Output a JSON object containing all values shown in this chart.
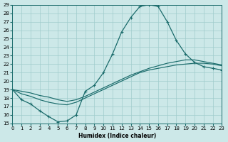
{
  "xlabel": "Humidex (Indice chaleur)",
  "bg_color": "#cce8e8",
  "grid_color": "#a0cccc",
  "line_color": "#1a6b6b",
  "xlim": [
    0,
    23
  ],
  "ylim": [
    15,
    29
  ],
  "xticks": [
    0,
    1,
    2,
    3,
    4,
    5,
    6,
    7,
    8,
    9,
    10,
    11,
    12,
    13,
    14,
    15,
    16,
    17,
    18,
    19,
    20,
    21,
    22,
    23
  ],
  "yticks": [
    15,
    16,
    17,
    18,
    19,
    20,
    21,
    22,
    23,
    24,
    25,
    26,
    27,
    28,
    29
  ],
  "main_x": [
    0,
    1,
    2,
    3,
    4,
    5,
    6,
    7,
    8,
    9,
    10,
    11,
    12,
    13,
    14,
    15,
    16,
    17,
    18,
    19,
    20,
    21,
    22,
    23
  ],
  "main_y": [
    19.0,
    17.8,
    17.3,
    16.5,
    15.8,
    15.2,
    15.3,
    16.0,
    18.8,
    19.5,
    21.0,
    23.2,
    25.8,
    27.5,
    28.8,
    29.0,
    28.8,
    27.0,
    24.8,
    23.2,
    22.2,
    21.7,
    21.5,
    21.3
  ],
  "line1_x": [
    0,
    1,
    2,
    3,
    4,
    5,
    6,
    7,
    8,
    9,
    10,
    11,
    12,
    13,
    14,
    15,
    16,
    17,
    18,
    19,
    20,
    21,
    22,
    23
  ],
  "line1_y": [
    19.0,
    18.5,
    18.2,
    17.8,
    17.5,
    17.3,
    17.2,
    17.5,
    18.0,
    18.5,
    19.0,
    19.5,
    20.0,
    20.5,
    21.0,
    21.3,
    21.5,
    21.7,
    21.9,
    22.0,
    22.1,
    22.1,
    22.0,
    21.8
  ],
  "line2_x": [
    0,
    1,
    2,
    3,
    4,
    5,
    6,
    7,
    8,
    9,
    10,
    11,
    12,
    13,
    14,
    15,
    16,
    17,
    18,
    19,
    20,
    21,
    22,
    23
  ],
  "line2_y": [
    19.0,
    18.8,
    18.6,
    18.3,
    18.1,
    17.8,
    17.6,
    17.8,
    18.2,
    18.7,
    19.2,
    19.7,
    20.2,
    20.7,
    21.1,
    21.5,
    21.8,
    22.1,
    22.3,
    22.5,
    22.5,
    22.3,
    22.1,
    21.9
  ]
}
